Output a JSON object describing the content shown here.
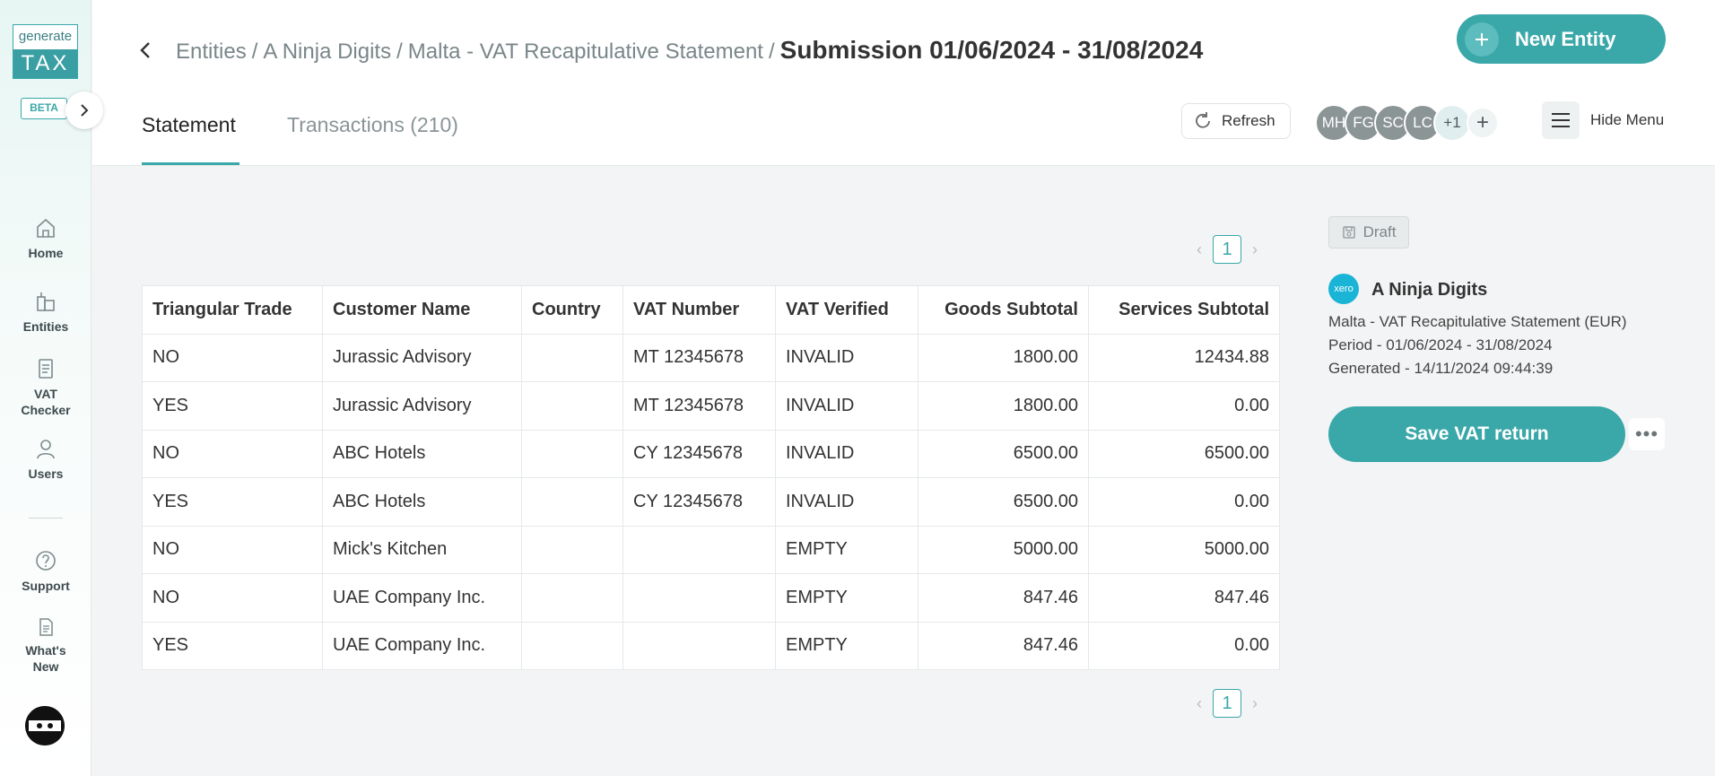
{
  "sidebar": {
    "logo_top": "generate",
    "logo_bottom": "TAX",
    "beta": "BETA",
    "items": [
      {
        "label": "Home",
        "icon": "home-icon"
      },
      {
        "label": "Entities",
        "icon": "buildings-icon"
      },
      {
        "label": "VAT Checker",
        "icon": "document-icon"
      },
      {
        "label": "Users",
        "icon": "user-icon"
      },
      {
        "label": "Support",
        "icon": "help-icon"
      },
      {
        "label": "What's New",
        "icon": "news-icon"
      }
    ]
  },
  "header": {
    "breadcrumb": [
      "Entities",
      "A Ninja Digits",
      "Malta - VAT Recapitulative Statement"
    ],
    "title": "Submission 01/06/2024 - 31/08/2024",
    "new_entity": "New Entity",
    "tabs": [
      {
        "label": "Statement",
        "active": true
      },
      {
        "label": "Transactions (210)",
        "active": false
      }
    ],
    "refresh": "Refresh",
    "users": [
      "MH",
      "FG",
      "SC",
      "LC"
    ],
    "more_users": "+1",
    "add_user": "+",
    "hide_menu": "Hide Menu"
  },
  "pagination": {
    "current": "1"
  },
  "table": {
    "columns": [
      "Triangular Trade",
      "Customer Name",
      "Country",
      "VAT Number",
      "VAT Verified",
      "Goods Subtotal",
      "Services Subtotal"
    ],
    "rows": [
      [
        "NO",
        "Jurassic Advisory",
        "",
        "MT 12345678",
        "INVALID",
        "1800.00",
        "12434.88"
      ],
      [
        "YES",
        "Jurassic Advisory",
        "",
        "MT 12345678",
        "INVALID",
        "1800.00",
        "0.00"
      ],
      [
        "NO",
        "ABC Hotels",
        "",
        "CY 12345678",
        "INVALID",
        "6500.00",
        "6500.00"
      ],
      [
        "YES",
        "ABC Hotels",
        "",
        "CY 12345678",
        "INVALID",
        "6500.00",
        "0.00"
      ],
      [
        "NO",
        "Mick's Kitchen",
        "",
        "",
        "EMPTY",
        "5000.00",
        "5000.00"
      ],
      [
        "NO",
        "UAE Company Inc.",
        "",
        "",
        "EMPTY",
        "847.46",
        "847.46"
      ],
      [
        "YES",
        "UAE Company Inc.",
        "",
        "",
        "EMPTY",
        "847.46",
        "0.00"
      ]
    ]
  },
  "panel": {
    "status": "Draft",
    "xero": "xero",
    "entity_name": "A Ninja Digits",
    "report": "Malta - VAT Recapitulative Statement (EUR)",
    "period": "Period - 01/06/2024 - 31/08/2024",
    "generated": "Generated - 14/11/2024 09:44:39",
    "save": "Save VAT return",
    "more": "•••"
  },
  "colors": {
    "accent": "#3aa7a9",
    "xero": "#1ab4d7"
  }
}
